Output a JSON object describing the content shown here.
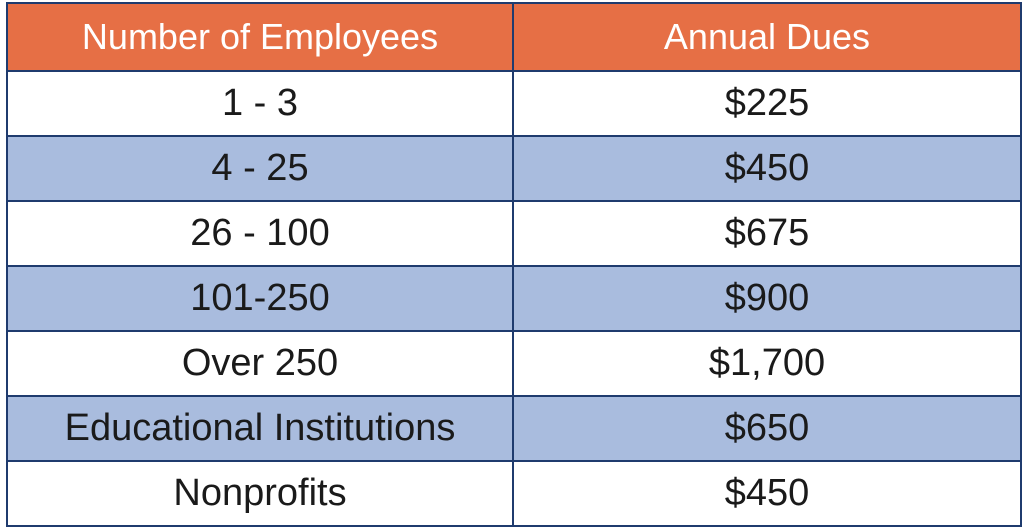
{
  "colors": {
    "header_background": "#e66f45",
    "header_text": "#ffffff",
    "stripe_background": "#a9bcde",
    "plain_background": "#ffffff",
    "border": "#1f3b6e",
    "body_text": "#1a1a1a"
  },
  "table": {
    "headers": [
      "Number of Employees",
      "Annual Dues"
    ],
    "rows": [
      {
        "employees": "1 - 3",
        "dues": "$225"
      },
      {
        "employees": "4 - 25",
        "dues": "$450"
      },
      {
        "employees": "26 - 100",
        "dues": "$675"
      },
      {
        "employees": "101-250",
        "dues": "$900"
      },
      {
        "employees": "Over 250",
        "dues": "$1,700"
      },
      {
        "employees": "Educational Institutions",
        "dues": "$650"
      },
      {
        "employees": "Nonprofits",
        "dues": "$450"
      }
    ]
  }
}
